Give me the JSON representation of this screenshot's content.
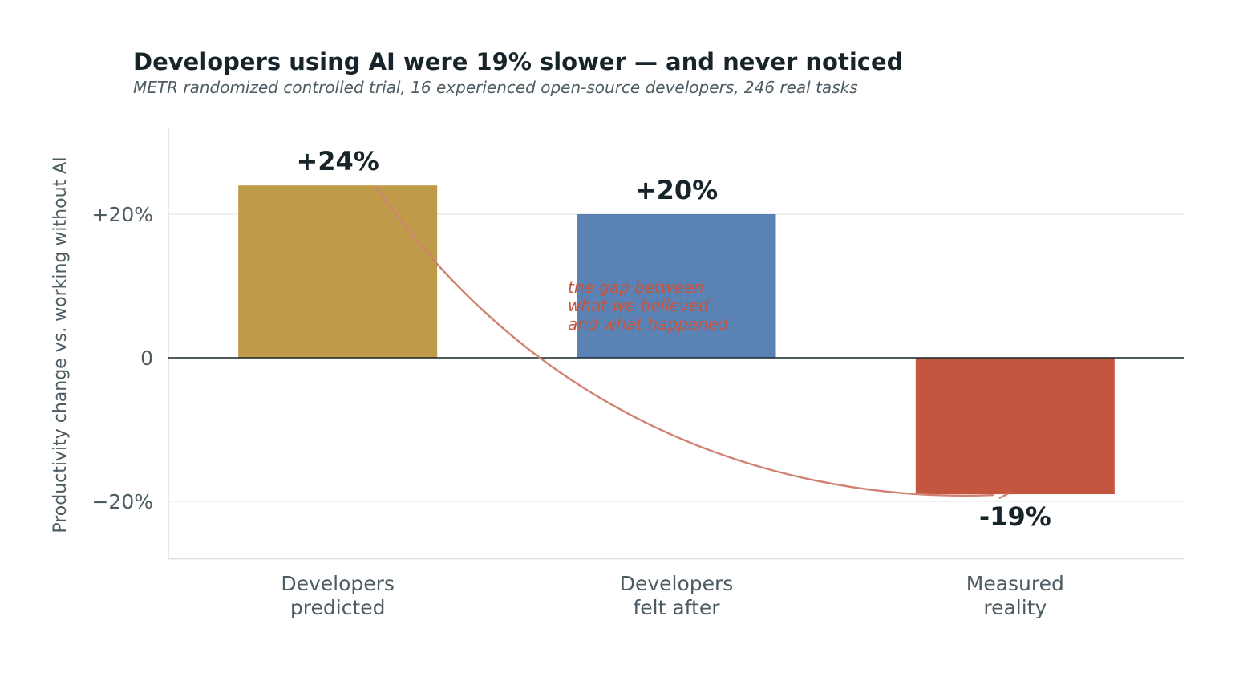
{
  "chart_data": {
    "type": "bar",
    "title": "Developers using AI were 19% slower — and never noticed",
    "subtitle": "METR randomized controlled trial, 16 experienced open-source developers, 246 real tasks",
    "xlabel": "",
    "ylabel": "Productivity change vs. working without AI",
    "ylim": [
      -28,
      32
    ],
    "yticks": [
      {
        "value": 20,
        "label": "+20%"
      },
      {
        "value": 0,
        "label": "0"
      },
      {
        "value": -20,
        "label": "−20%"
      }
    ],
    "categories": [
      [
        "Developers",
        "predicted"
      ],
      [
        "Developers",
        "felt after"
      ],
      [
        "Measured",
        "reality"
      ]
    ],
    "values": [
      24,
      20,
      -19
    ],
    "data_labels": [
      "+24%",
      "+20%",
      "-19%"
    ],
    "colors": [
      "#bf9a48",
      "#5a82b4",
      "#c4563f"
    ],
    "grid": "horizontal",
    "annotation": {
      "lines": [
        "the gap between",
        "what we believed",
        "and what happened"
      ],
      "color": "#c4563f",
      "from_category": 0,
      "to_category": 2
    }
  }
}
